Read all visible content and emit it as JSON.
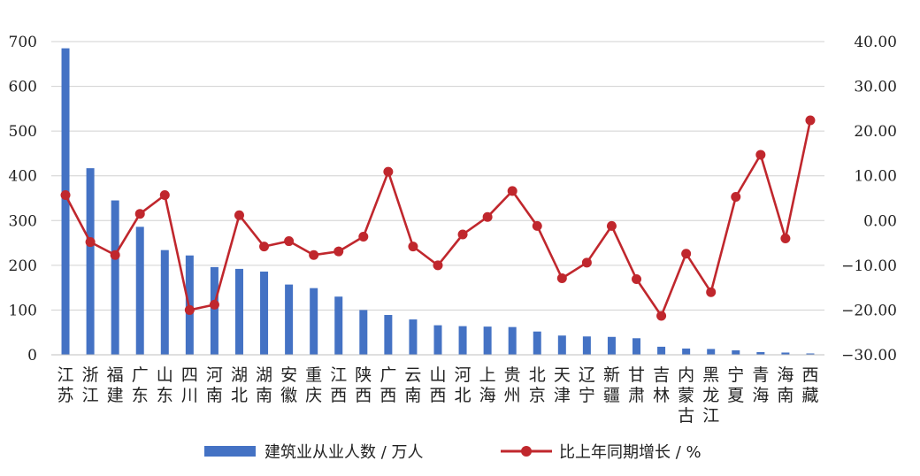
{
  "chart_data": {
    "type": "bar+line",
    "categories": [
      [
        "江",
        "苏"
      ],
      [
        "浙",
        "江"
      ],
      [
        "福",
        "建"
      ],
      [
        "广",
        "东"
      ],
      [
        "山",
        "东"
      ],
      [
        "四",
        "川"
      ],
      [
        "河",
        "南"
      ],
      [
        "湖",
        "北"
      ],
      [
        "湖",
        "南"
      ],
      [
        "安",
        "徽"
      ],
      [
        "重",
        "庆"
      ],
      [
        "江",
        "西"
      ],
      [
        "陕",
        "西"
      ],
      [
        "广",
        "西"
      ],
      [
        "云",
        "南"
      ],
      [
        "山",
        "西"
      ],
      [
        "河",
        "北"
      ],
      [
        "上",
        "海"
      ],
      [
        "贵",
        "州"
      ],
      [
        "北",
        "京"
      ],
      [
        "天",
        "津"
      ],
      [
        "辽",
        "宁"
      ],
      [
        "新",
        "疆"
      ],
      [
        "甘",
        "肃"
      ],
      [
        "吉",
        "林"
      ],
      [
        "内",
        "蒙",
        "古"
      ],
      [
        "黑",
        "龙",
        "江"
      ],
      [
        "宁",
        "夏"
      ],
      [
        "青",
        "海"
      ],
      [
        "海",
        "南"
      ],
      [
        "西",
        "藏"
      ]
    ],
    "series": [
      {
        "name": "建筑业从业人数 / 万人",
        "type": "bar",
        "axis": "left",
        "color": "#4472c4",
        "values": [
          685,
          417,
          345,
          286,
          234,
          222,
          196,
          192,
          186,
          157,
          149,
          130,
          100,
          89,
          79,
          66,
          64,
          63,
          62,
          52,
          43,
          41,
          40,
          37,
          18,
          14,
          13,
          10,
          6,
          5,
          3
        ]
      },
      {
        "name": "比上年同期增长 / %",
        "type": "line",
        "axis": "right",
        "color": "#c0272d",
        "values": [
          5.7,
          -4.8,
          -7.7,
          1.5,
          5.7,
          -20.0,
          -18.8,
          1.2,
          -5.8,
          -4.6,
          -7.7,
          -6.9,
          -3.6,
          10.9,
          -5.8,
          -10.0,
          -3.1,
          0.8,
          6.6,
          -1.2,
          -12.9,
          -9.4,
          -1.2,
          -13.1,
          -21.3,
          -7.4,
          -16.0,
          5.3,
          14.7,
          -4.0,
          22.4
        ]
      }
    ],
    "y_left": {
      "min": 0,
      "max": 700,
      "ticks": [
        "0",
        "100",
        "200",
        "300",
        "400",
        "500",
        "600",
        "700"
      ],
      "tick_values": [
        0,
        100,
        200,
        300,
        400,
        500,
        600,
        700
      ]
    },
    "y_right": {
      "min": -30,
      "max": 40,
      "ticks": [
        "−30.00",
        "−20.00",
        "−10.00",
        "0.00",
        "10.00",
        "20.00",
        "30.00",
        "40.00"
      ],
      "tick_values": [
        -30,
        -20,
        -10,
        0,
        10,
        20,
        30,
        40
      ]
    },
    "grid": true,
    "legend_position": "bottom"
  }
}
